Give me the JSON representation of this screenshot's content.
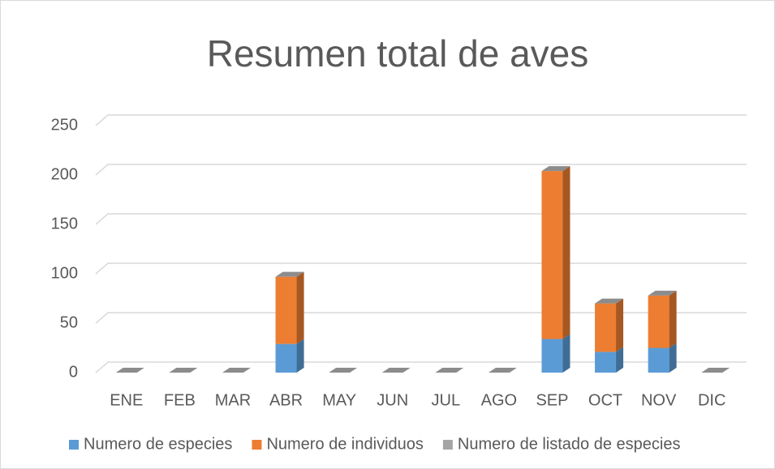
{
  "chart_data": {
    "type": "bar3d_stacked",
    "title": "Resumen total de aves",
    "categories": [
      "ENE",
      "FEB",
      "MAR",
      "ABR",
      "MAY",
      "JUN",
      "JUL",
      "AGO",
      "SEP",
      "OCT",
      "NOV",
      "DIC"
    ],
    "series": [
      {
        "name": "Numero de especies",
        "color": "#5b9bd5",
        "values": [
          0,
          0,
          0,
          29,
          0,
          0,
          0,
          0,
          34,
          21,
          25,
          0
        ]
      },
      {
        "name": "Numero de individuos",
        "color": "#ed7d31",
        "values": [
          0,
          0,
          0,
          68,
          0,
          0,
          0,
          0,
          170,
          49,
          53,
          0
        ]
      },
      {
        "name": "Numero de listado de especies",
        "color": "#a5a5a5",
        "values": [
          0,
          0,
          0,
          0,
          0,
          0,
          0,
          0,
          0,
          0,
          0,
          0
        ]
      }
    ],
    "ylim": [
      0,
      250
    ],
    "yticks": [
      0,
      50,
      100,
      150,
      200,
      250
    ],
    "grid": true,
    "legend": "bottom"
  }
}
